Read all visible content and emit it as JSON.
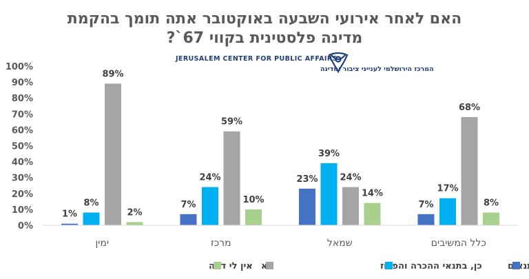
{
  "chart_data": {
    "type": "bar",
    "title": "האם לאחר אירועי השבעה באוקטובר אתה תומך בהקמת מדינה פלסטינית בקווי 67`?",
    "title_lines": [
      "האם לאחר אירועי השבעה באוקטובר אתה תומך בהקמת",
      "מדינה פלסטינית בקווי 67`?"
    ],
    "categories": [
      "ימין",
      "מרכז",
      "שמאל",
      "כלל המשיבים"
    ],
    "series": [
      {
        "name": "כן, ללא תנאים",
        "color": "#4472c4",
        "values": [
          1,
          7,
          23,
          7
        ]
      },
      {
        "name": "כן, בתנאי ההכרה והפרוז",
        "color": "#00b0f0",
        "values": [
          8,
          24,
          39,
          17
        ]
      },
      {
        "name": "לא",
        "color": "#a5a5a5",
        "values": [
          89,
          59,
          24,
          68
        ]
      },
      {
        "name": "אין לי דעה",
        "color": "#a9d18e",
        "values": [
          2,
          10,
          14,
          8
        ]
      }
    ],
    "ylim": [
      0,
      100
    ],
    "yticks": [
      0,
      10,
      20,
      30,
      40,
      50,
      60,
      70,
      80,
      90,
      100
    ],
    "ytick_format": "{v}%",
    "data_label_format": "{v}%",
    "grid": false,
    "legend_position": "bottom"
  },
  "logo": {
    "name": "jerusalem-center-logo",
    "text_en": "JERUSALEM CENTER FOR PUBLIC AFFAIRS",
    "text_he": "המרכז הירושלמי לענייני ציבור ומדינה",
    "color": "#1f3f7a"
  }
}
